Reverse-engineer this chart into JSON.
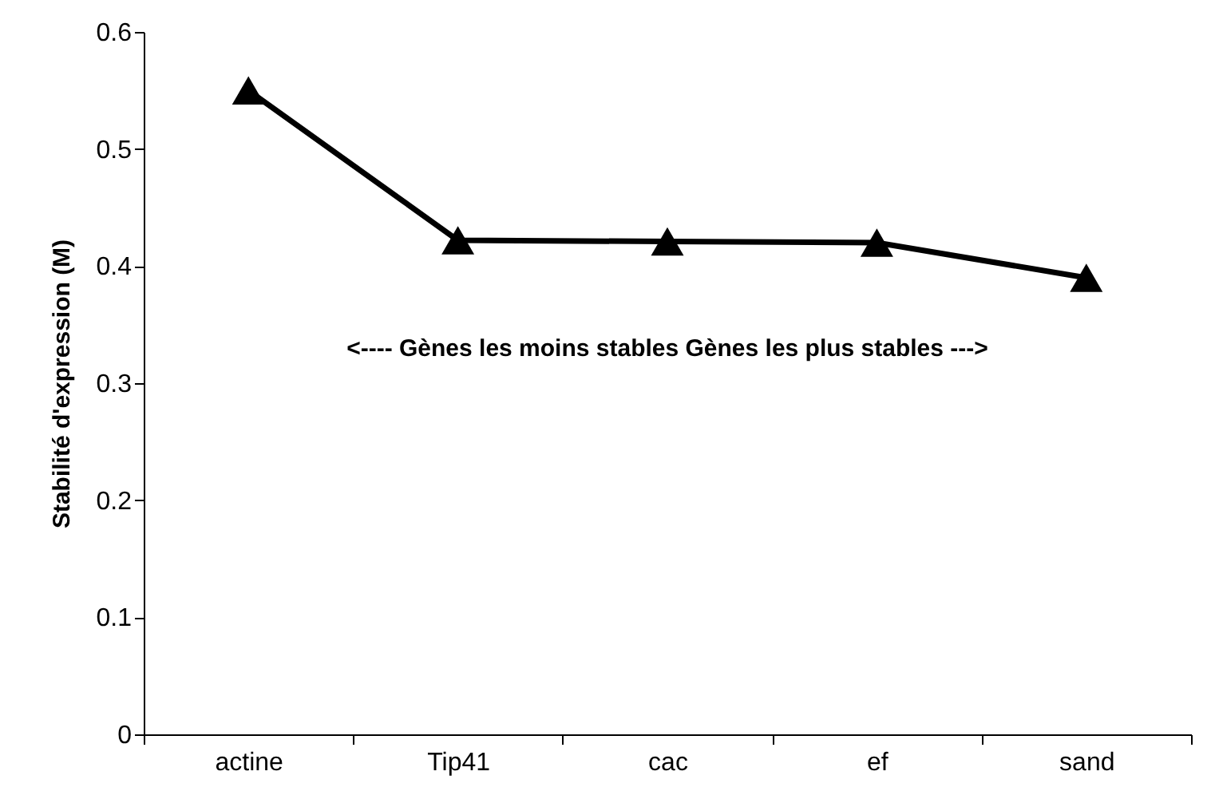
{
  "chart_data": {
    "type": "line",
    "ylabel": "Stabilité d'expression (M)",
    "categories": [
      "actine",
      "Tip41",
      "cac",
      "ef",
      "sand"
    ],
    "series": [
      {
        "color": "#000000",
        "values": [
          0.55,
          0.422,
          0.421,
          0.42,
          0.39
        ]
      }
    ],
    "ylim": [
      0,
      0.6
    ],
    "yticks": [
      0,
      {
        "value": 0.1,
        "label": "0.1"
      },
      {
        "value": 0.2,
        "label": "0.2"
      },
      {
        "value": 0.3,
        "label": "0.3"
      },
      {
        "value": 0.4,
        "label": "0.4"
      },
      {
        "value": 0.5,
        "label": "0.5"
      },
      {
        "value": 0.6,
        "label": "0.6"
      }
    ],
    "grid": false,
    "marker": "triangle",
    "line_style": "solid",
    "annotations": [
      "<----   Gènes les moins stables  Gènes les plus stables --->"
    ]
  }
}
